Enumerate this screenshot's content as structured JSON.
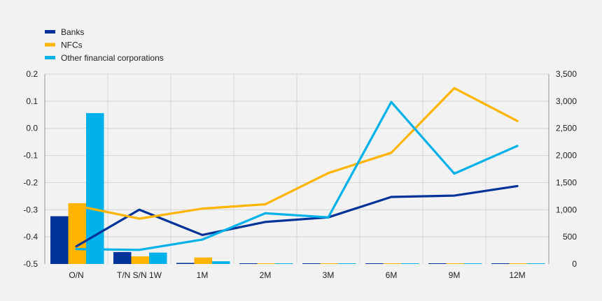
{
  "chart_data": {
    "type": "bar+line",
    "categories": [
      "O/N",
      "T/N S/N 1W",
      "1M",
      "2M",
      "3M",
      "6M",
      "9M",
      "12M"
    ],
    "y_left": {
      "min": -0.5,
      "max": 0.2,
      "ticks": [
        "0.2",
        "0.1",
        "0.0",
        "-0.1",
        "-0.2",
        "-0.3",
        "-0.4",
        "-0.5"
      ],
      "tick_values": [
        0.2,
        0.1,
        0.0,
        -0.1,
        -0.2,
        -0.3,
        -0.4,
        -0.5
      ]
    },
    "y_right": {
      "min": 0,
      "max": 3500,
      "ticks": [
        "3,500",
        "3,000",
        "2,500",
        "2,000",
        "1,500",
        "1,000",
        "500",
        "0"
      ],
      "tick_values": [
        3500,
        3000,
        2500,
        2000,
        1500,
        1000,
        500,
        0
      ]
    },
    "series": [
      {
        "name": "Banks",
        "color": "#003399",
        "bars_right_axis": [
          880,
          220,
          20,
          5,
          5,
          0,
          0,
          0
        ],
        "line_left_axis": [
          -0.435,
          -0.3,
          -0.393,
          -0.345,
          -0.328,
          -0.253,
          -0.248,
          -0.213
        ]
      },
      {
        "name": "NFCs",
        "color": "#ffb400",
        "bars_right_axis": [
          1120,
          140,
          120,
          10,
          10,
          5,
          0,
          0
        ],
        "line_left_axis": [
          -0.285,
          -0.333,
          -0.296,
          -0.28,
          -0.165,
          -0.09,
          0.148,
          0.027
        ]
      },
      {
        "name": "Other financial corporations",
        "color": "#00b1ea",
        "bars_right_axis": [
          2780,
          210,
          50,
          5,
          5,
          5,
          5,
          5
        ],
        "line_left_axis": [
          -0.445,
          -0.448,
          -0.41,
          -0.313,
          -0.328,
          0.097,
          -0.167,
          -0.065
        ]
      }
    ],
    "legend_position": "top-left",
    "grid": true
  }
}
